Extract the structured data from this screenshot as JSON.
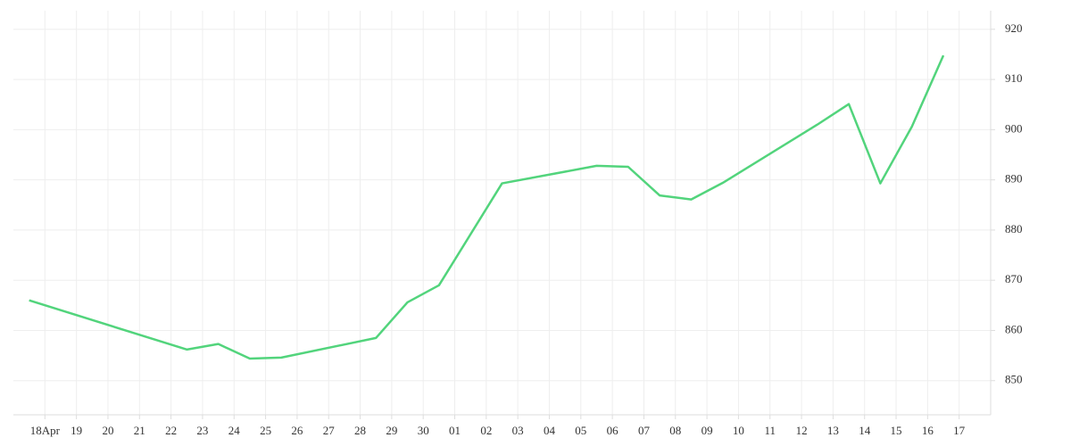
{
  "chart_data": {
    "type": "line",
    "x": [
      -0.5,
      4.5,
      5.5,
      6.5,
      7.5,
      10.5,
      11.5,
      12.5,
      14.5,
      17.5,
      18.5,
      19.5,
      20.5,
      21.5,
      24.5,
      25.5,
      26.5,
      27.5,
      28.5
    ],
    "series": [
      {
        "color": "#52d47c",
        "values": [
          866.0,
          856.2,
          857.3,
          854.4,
          854.6,
          858.5,
          865.6,
          869.0,
          889.3,
          892.8,
          892.6,
          886.9,
          886.1,
          889.4,
          901.0,
          905.1,
          889.3,
          900.6,
          914.8
        ]
      }
    ],
    "xlim": [
      -1,
      30
    ],
    "xticks": [
      {
        "value": 0,
        "label": "18Apr"
      },
      {
        "value": 1,
        "label": "19"
      },
      {
        "value": 2,
        "label": "20"
      },
      {
        "value": 3,
        "label": "21"
      },
      {
        "value": 4,
        "label": "22"
      },
      {
        "value": 5,
        "label": "23"
      },
      {
        "value": 6,
        "label": "24"
      },
      {
        "value": 7,
        "label": "25"
      },
      {
        "value": 8,
        "label": "26"
      },
      {
        "value": 9,
        "label": "27"
      },
      {
        "value": 10,
        "label": "28"
      },
      {
        "value": 11,
        "label": "29"
      },
      {
        "value": 12,
        "label": "30"
      },
      {
        "value": 13,
        "label": "01"
      },
      {
        "value": 14,
        "label": "02"
      },
      {
        "value": 15,
        "label": "03"
      },
      {
        "value": 16,
        "label": "04"
      },
      {
        "value": 17,
        "label": "05"
      },
      {
        "value": 18,
        "label": "06"
      },
      {
        "value": 19,
        "label": "07"
      },
      {
        "value": 20,
        "label": "08"
      },
      {
        "value": 21,
        "label": "09"
      },
      {
        "value": 22,
        "label": "10"
      },
      {
        "value": 23,
        "label": "11"
      },
      {
        "value": 24,
        "label": "12"
      },
      {
        "value": 25,
        "label": "13"
      },
      {
        "value": 26,
        "label": "14"
      },
      {
        "value": 27,
        "label": "15"
      },
      {
        "value": 28,
        "label": "16"
      },
      {
        "value": 29,
        "label": "17"
      }
    ],
    "ylim": [
      843.2,
      923.7
    ],
    "yticks": [
      850,
      860,
      870,
      880,
      890,
      900,
      910,
      920
    ],
    "grid": true
  }
}
